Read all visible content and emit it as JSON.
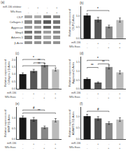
{
  "chart_data": [
    {
      "type": "heatmap",
      "title": "(a)",
      "rows": [
        "CILP",
        "Collagen-1",
        "Aggrecan",
        "Mmp3",
        "Adamts-5",
        "β-Actin"
      ],
      "cells": [
        [
          0.35,
          0.32,
          0.5,
          0.45
        ],
        [
          0.45,
          0.5,
          0.65,
          0.55
        ],
        [
          0.4,
          0.38,
          0.6,
          0.52
        ],
        [
          0.55,
          0.5,
          0.38,
          0.45
        ],
        [
          0.5,
          0.48,
          0.35,
          0.42
        ],
        [
          0.42,
          0.42,
          0.42,
          0.42
        ]
      ],
      "zlim": [
        0,
        1
      ],
      "conditions": [
        {
          "label": "miR-136 inhibitor",
          "values": [
            "-",
            "+",
            "-",
            "+"
          ]
        },
        {
          "label": "NRx Exos",
          "values": [
            "-",
            "-",
            "+",
            "+"
          ]
        }
      ],
      "grid": false,
      "tick_labels": "y"
    },
    {
      "type": "bar",
      "title": "(b)",
      "ylabel": "Relative expression of\nCILP/β-Actin",
      "values": [
        1.0,
        0.82,
        0.52,
        0.8
      ],
      "errors": [
        0.07,
        0.1,
        0.06,
        0.09
      ],
      "colors": [
        "#1a1a1a",
        "#555555",
        "#888888",
        "#bbbbbb"
      ],
      "ylim": [
        0,
        1.4
      ],
      "yticks": [
        {
          "value": 0,
          "label": "0.0"
        },
        0.5,
        {
          "value": 1,
          "label": "1.0"
        }
      ],
      "brackets": [
        {
          "from": 0,
          "to": 2,
          "y": 1.18,
          "label": "*"
        }
      ],
      "conditions": [
        {
          "label": "miR-136",
          "values": [
            "-",
            "+",
            "-",
            "+"
          ]
        },
        {
          "label": "NRx Exos",
          "values": [
            "-",
            "-",
            "+",
            "+"
          ]
        }
      ],
      "grid": false,
      "tick_labels": "y"
    },
    {
      "type": "bar",
      "title": "(c)",
      "ylabel": "Relative expression of\nCollagen-1/β-Actin",
      "values": [
        1.0,
        1.22,
        1.62,
        1.32
      ],
      "errors": [
        0.09,
        0.11,
        0.13,
        0.11
      ],
      "colors": [
        "#1a1a1a",
        "#555555",
        "#888888",
        "#bbbbbb"
      ],
      "ylim": [
        0,
        2.2
      ],
      "yticks": [
        {
          "value": 0,
          "label": "0.0"
        },
        0.5,
        {
          "value": 1,
          "label": "1.0"
        },
        1.5,
        {
          "value": 2,
          "label": "2.0"
        }
      ],
      "brackets": [
        {
          "from": 0,
          "to": 2,
          "y": 1.95,
          "label": "*"
        },
        {
          "from": 1,
          "to": 2,
          "y": 1.72,
          "label": "**"
        },
        {
          "from": 0,
          "to": 3,
          "y": 1.52,
          "label": "**"
        }
      ],
      "conditions": [
        {
          "label": "miR-136",
          "values": [
            "-",
            "+",
            "-",
            "+"
          ]
        },
        {
          "label": "NRx Exos",
          "values": [
            "-",
            "-",
            "+",
            "+"
          ]
        }
      ],
      "grid": false,
      "tick_labels": "y"
    },
    {
      "type": "bar",
      "title": "(d)",
      "ylabel": "Relative expression of\nAggrecan/β-Actin",
      "values": [
        0.55,
        0.35,
        1.22,
        0.92
      ],
      "errors": [
        0.06,
        0.04,
        0.11,
        0.09
      ],
      "colors": [
        "#1a1a1a",
        "#555555",
        "#888888",
        "#bbbbbb"
      ],
      "ylim": [
        0,
        1.8
      ],
      "yticks": [
        {
          "value": 0,
          "label": "0.0"
        },
        0.5,
        {
          "value": 1,
          "label": "1.0"
        },
        1.5
      ],
      "brackets": [
        {
          "from": 0,
          "to": 2,
          "y": 1.55,
          "label": "*"
        },
        {
          "from": 1,
          "to": 2,
          "y": 1.35,
          "label": "**"
        },
        {
          "from": 0,
          "to": 1,
          "y": 1.15,
          "label": "**"
        }
      ],
      "conditions": [
        {
          "label": "miR-136",
          "values": [
            "-",
            "+",
            "-",
            "+"
          ]
        },
        {
          "label": "NRx Exos",
          "values": [
            "-",
            "-",
            "+",
            "+"
          ]
        }
      ],
      "grid": false,
      "tick_labels": "y"
    },
    {
      "type": "bar",
      "title": "(e)",
      "ylabel": "Relative expression of\nMMP3/β-Actin",
      "values": [
        1.0,
        0.92,
        0.55,
        0.88
      ],
      "errors": [
        0.08,
        0.09,
        0.06,
        0.08
      ],
      "colors": [
        "#1a1a1a",
        "#555555",
        "#888888",
        "#bbbbbb"
      ],
      "ylim": [
        0,
        1.5
      ],
      "yticks": [
        {
          "value": 0,
          "label": "0.0"
        },
        0.5,
        {
          "value": 1,
          "label": "1.0"
        }
      ],
      "brackets": [
        {
          "from": 0,
          "to": 2,
          "y": 1.32,
          "label": "#"
        },
        {
          "from": 0,
          "to": 3,
          "y": 1.18,
          "label": "**"
        }
      ],
      "conditions": [
        {
          "label": "miR-136",
          "values": [
            "-",
            "+",
            "-",
            "+"
          ]
        },
        {
          "label": "NRx Exos",
          "values": [
            "-",
            "-",
            "+",
            "+"
          ]
        }
      ],
      "grid": false,
      "tick_labels": "y"
    },
    {
      "type": "bar",
      "title": "(f)",
      "ylabel": "Relative expression of\nADAMTS-5/β-Actin",
      "values": [
        1.0,
        0.9,
        0.7,
        0.85
      ],
      "errors": [
        0.08,
        0.08,
        0.06,
        0.08
      ],
      "colors": [
        "#1a1a1a",
        "#555555",
        "#888888",
        "#bbbbbb"
      ],
      "ylim": [
        0,
        1.4
      ],
      "yticks": [
        {
          "value": 0,
          "label": "0.0"
        },
        0.5,
        {
          "value": 1,
          "label": "1.0"
        }
      ],
      "brackets": [
        {
          "from": 0,
          "to": 2,
          "y": 1.18,
          "label": "#"
        }
      ],
      "conditions": [
        {
          "label": "miR-136",
          "values": [
            "-",
            "+",
            "-",
            "+"
          ]
        },
        {
          "label": "NRx Exos",
          "values": [
            "-",
            "-",
            "+",
            "+"
          ]
        }
      ],
      "grid": false,
      "tick_labels": "y"
    }
  ]
}
